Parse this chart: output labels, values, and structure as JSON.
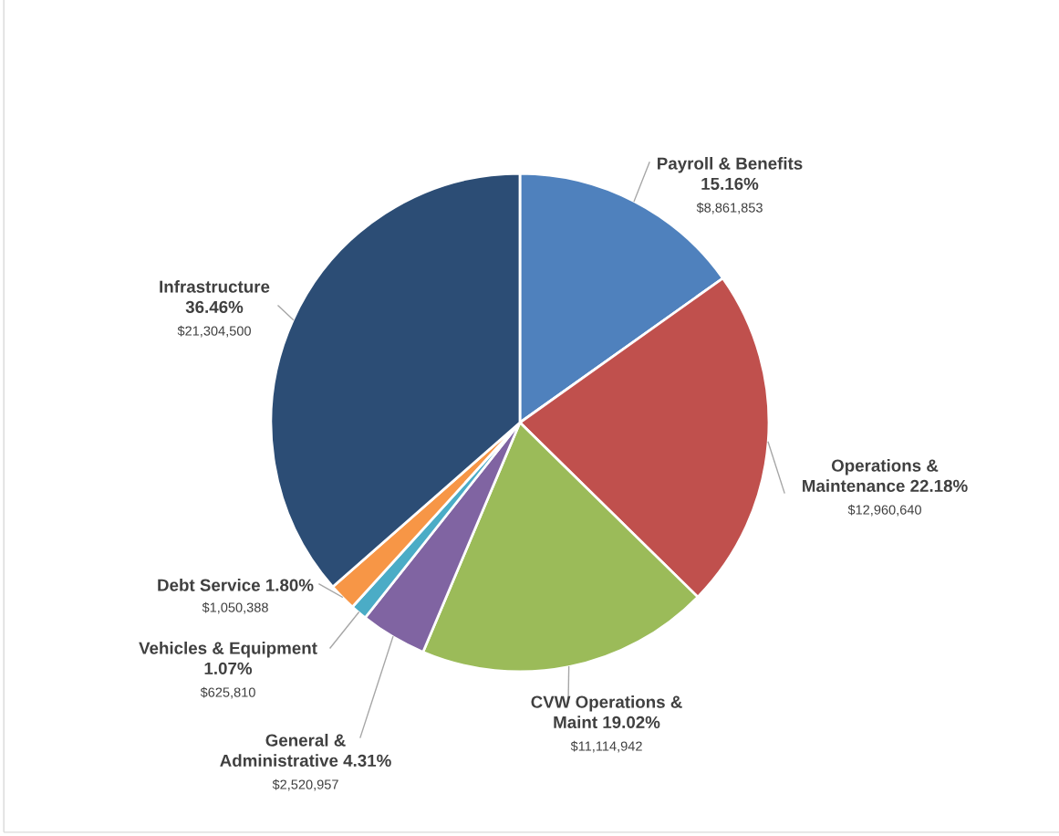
{
  "chart_data": {
    "type": "pie",
    "categories": [
      "Payroll & Benefits\n15.16%",
      "Operations &\nMaintenance 22.18%",
      "CVW Operations &\nMaint 19.02%",
      "General &\nAdministrative 4.31%",
      "Vehicles & Equipment\n1.07%",
      "Debt Service 1.80%",
      "Infrastructure\n36.46%"
    ],
    "values": [
      8861853,
      12960640,
      11114942,
      2520957,
      625810,
      1050388,
      21304500
    ],
    "value_labels": [
      "$8,861,853",
      "$12,960,640",
      "$11,114,942",
      "$2,520,957",
      "$625,810",
      "$1,050,388",
      "$21,304,500"
    ],
    "colors": [
      "#4f81bd",
      "#c0504d",
      "#9bbb59",
      "#8064a2",
      "#4bacc6",
      "#f79646",
      "#2c4d75"
    ]
  }
}
